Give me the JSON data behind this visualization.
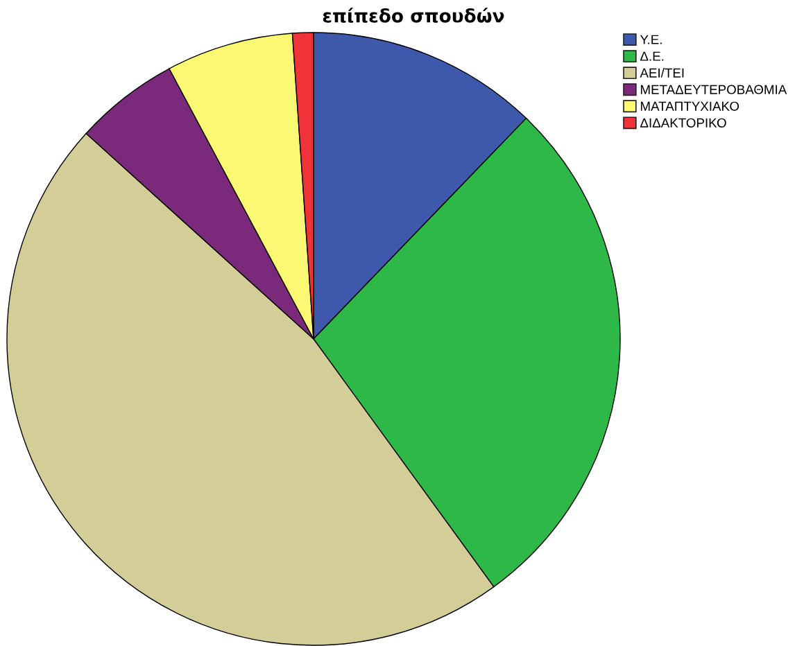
{
  "chart_data": {
    "type": "pie",
    "title": "επίπεδο σπουδών",
    "categories": [
      "Υ.Ε.",
      "Δ.Ε.",
      "ΑΕΙ/ΤΕΙ",
      "ΜΕΤΑΔΕΥΤΕΡΟΒΑΘΜΙΑ",
      "ΜΑΤΑΠΤΥΧΙΑΚΟ",
      "ΔΙΔΑΚΤΟΡΙΚΟ"
    ],
    "values": [
      12.2,
      27.8,
      46.7,
      5.5,
      6.7,
      1.1
    ],
    "colors": [
      "#3e58ac",
      "#2eb848",
      "#d3ce97",
      "#7b2a7b",
      "#fbf873",
      "#ef3338"
    ],
    "legend": "top right"
  }
}
